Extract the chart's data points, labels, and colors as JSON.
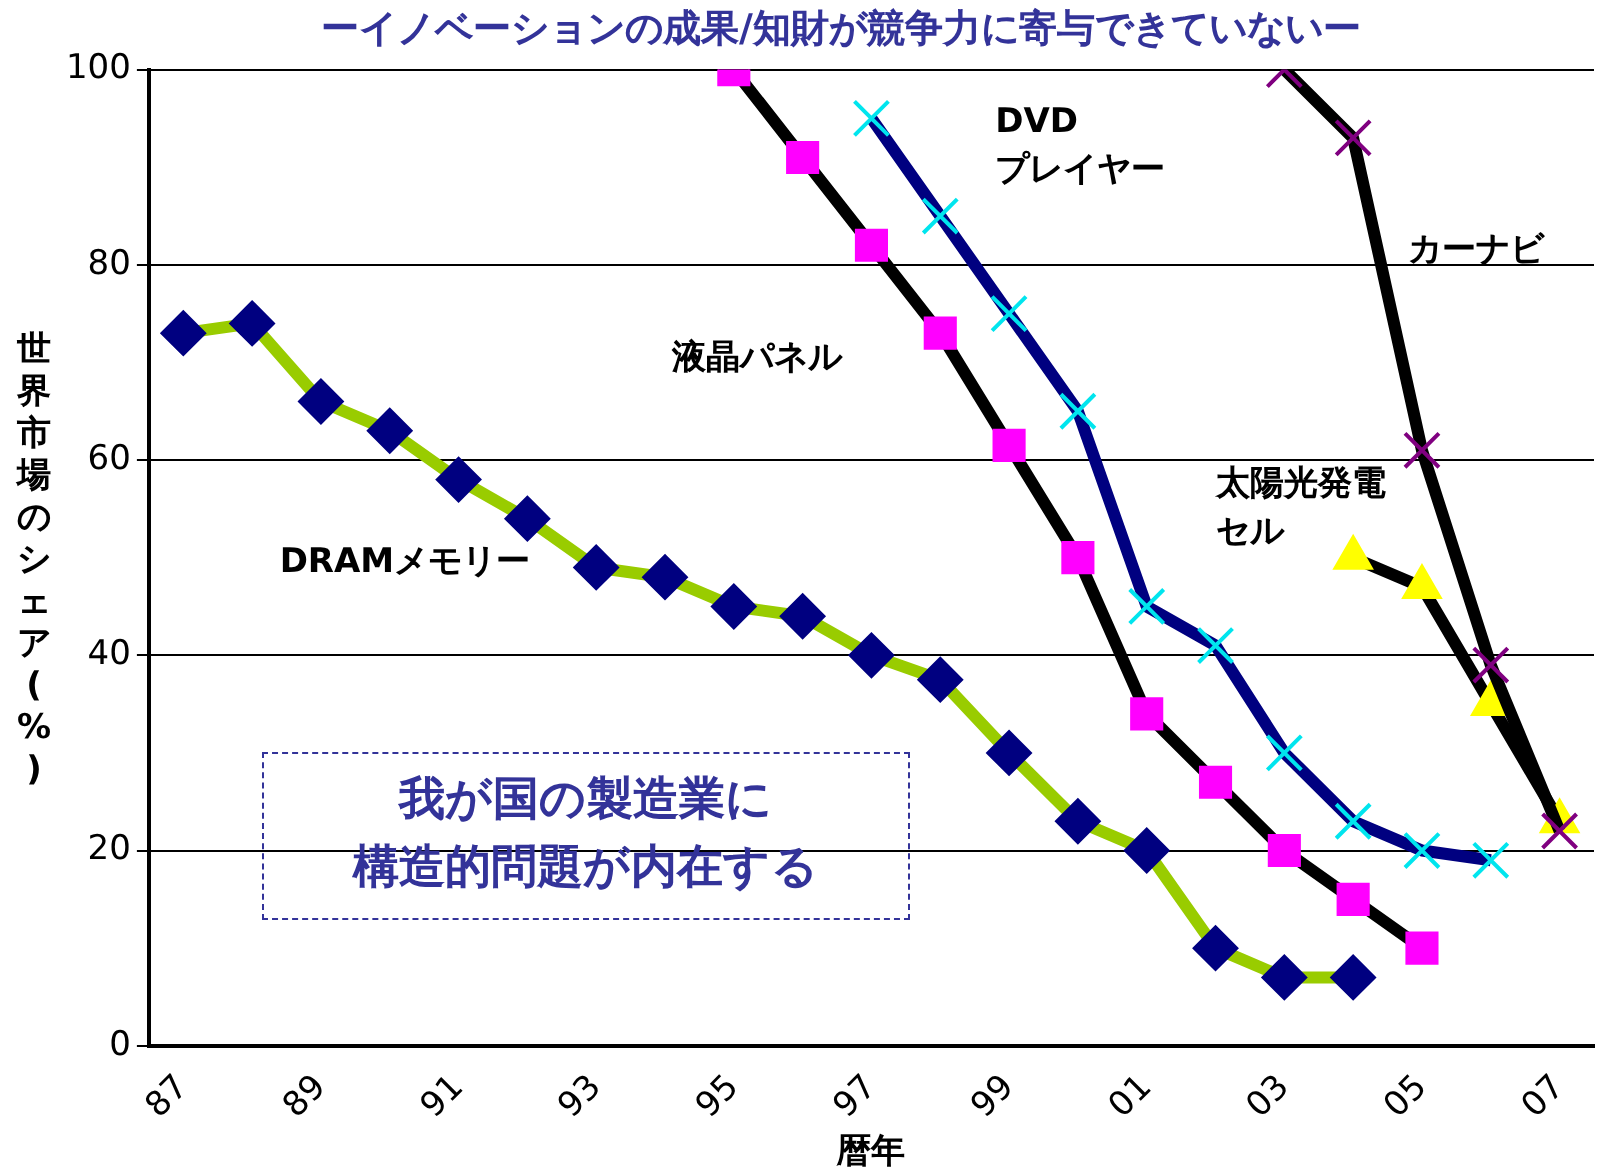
{
  "chart_data": {
    "type": "line",
    "title": "ーイノベーションの成果/知財が競争力に寄与できていないー",
    "xlabel": "暦年",
    "ylabel": "世界市場のシェア(%)",
    "categories": [
      "87",
      null,
      "89",
      null,
      "91",
      null,
      "93",
      null,
      "95",
      null,
      "97",
      null,
      "99",
      null,
      "01",
      null,
      "03",
      null,
      "05",
      null,
      "07"
    ],
    "ylim": [
      0,
      100
    ],
    "yticks": [
      0,
      20,
      40,
      60,
      80,
      100
    ],
    "grid": "y",
    "legend": false,
    "series": [
      {
        "name": "DRAMメモリー",
        "color": "#000080",
        "marker": "diamond",
        "values": [
          73,
          74,
          66,
          63,
          58,
          54,
          49,
          48,
          45,
          44,
          40,
          37.5,
          30,
          23,
          20,
          10,
          7,
          7,
          null,
          null,
          null
        ]
      },
      {
        "name": "液晶パネル",
        "color": "#ff00ff",
        "marker": "square",
        "values": [
          null,
          null,
          null,
          null,
          null,
          null,
          null,
          null,
          100,
          91,
          82,
          73,
          61.5,
          50,
          34,
          27,
          20,
          15,
          10,
          null,
          null
        ]
      },
      {
        "name": "DVDプレイヤー",
        "color": "#00e5ee",
        "marker": "cross",
        "values": [
          null,
          null,
          null,
          null,
          null,
          null,
          null,
          null,
          null,
          null,
          95,
          85,
          75,
          65,
          45,
          41,
          30,
          23,
          20,
          19,
          null
        ]
      },
      {
        "name": "カーナビ",
        "color": "#800080",
        "marker": "cross",
        "values": [
          null,
          null,
          null,
          null,
          null,
          null,
          null,
          null,
          null,
          null,
          null,
          null,
          null,
          null,
          null,
          null,
          100,
          93,
          61,
          39,
          22
        ]
      },
      {
        "name": "太陽光発電セル",
        "color": "#ffff00",
        "marker": "triangle",
        "values": [
          null,
          null,
          null,
          null,
          null,
          null,
          null,
          null,
          null,
          null,
          null,
          null,
          null,
          null,
          null,
          null,
          null,
          50,
          47,
          35,
          23
        ]
      }
    ],
    "annotations": [
      "我が国の製造業に構造的問題が内在する"
    ]
  }
}
